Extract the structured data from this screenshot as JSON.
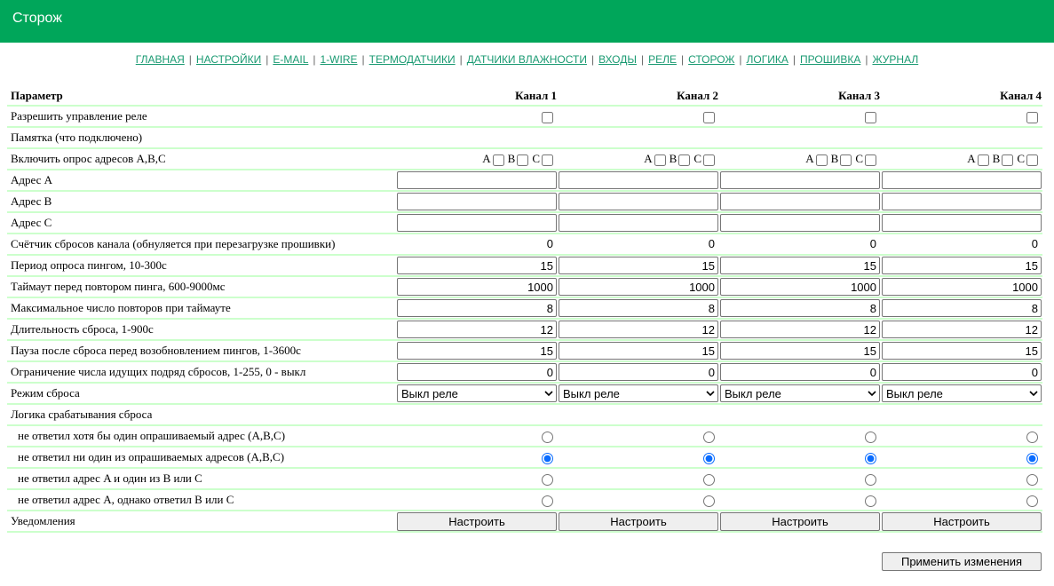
{
  "header": {
    "title": "Сторож"
  },
  "nav": [
    "ГЛАВНАЯ",
    "НАСТРОЙКИ",
    "E-MAIL",
    "1-WIRE",
    "ТЕРМОДАТЧИКИ",
    "ДАТЧИКИ ВЛАЖНОСТИ",
    "ВХОДЫ",
    "РЕЛЕ",
    "СТОРОЖ",
    "ЛОГИКА",
    "ПРОШИВКА",
    "ЖУРНАЛ"
  ],
  "table": {
    "param_header": "Параметр",
    "channels": [
      "Канал 1",
      "Канал 2",
      "Канал 3",
      "Канал 4"
    ],
    "rows": [
      {
        "label": "Разрешить управление реле",
        "type": "checkbox",
        "values": [
          false,
          false,
          false,
          false
        ]
      },
      {
        "label": "Памятка (что подключено)",
        "type": "none"
      },
      {
        "label": "Включить опрос адресов A,B,C",
        "type": "abc",
        "abc_labels": [
          "A",
          "B",
          "C"
        ],
        "values": [
          [
            false,
            false,
            false
          ],
          [
            false,
            false,
            false
          ],
          [
            false,
            false,
            false
          ],
          [
            false,
            false,
            false
          ]
        ]
      },
      {
        "label": "Адрес A",
        "type": "text",
        "values": [
          "",
          "",
          "",
          ""
        ]
      },
      {
        "label": "Адрес B",
        "type": "text",
        "values": [
          "",
          "",
          "",
          ""
        ]
      },
      {
        "label": "Адрес C",
        "type": "text",
        "values": [
          "",
          "",
          "",
          ""
        ]
      },
      {
        "label": "Счётчик сбросов канала (обнуляется при перезагрузке прошивки)",
        "type": "value",
        "values": [
          "0",
          "0",
          "0",
          "0"
        ]
      },
      {
        "label": "Период опроса пингом, 10-300с",
        "type": "text",
        "values": [
          "15",
          "15",
          "15",
          "15"
        ]
      },
      {
        "label": "Таймаут перед повтором пинга, 600-9000мс",
        "type": "text",
        "values": [
          "1000",
          "1000",
          "1000",
          "1000"
        ]
      },
      {
        "label": "Максимальное число повторов при таймауте",
        "type": "text",
        "values": [
          "8",
          "8",
          "8",
          "8"
        ]
      },
      {
        "label": "Длительность сброса, 1-900с",
        "type": "text",
        "values": [
          "12",
          "12",
          "12",
          "12"
        ]
      },
      {
        "label": "Пауза после сброса перед возобновлением пингов, 1-3600с",
        "type": "text",
        "values": [
          "15",
          "15",
          "15",
          "15"
        ]
      },
      {
        "label": "Ограничение числа идущих подряд сбросов, 1-255, 0 - выкл",
        "type": "text",
        "values": [
          "0",
          "0",
          "0",
          "0"
        ]
      },
      {
        "label": "Режим сброса",
        "type": "select",
        "values": [
          "Выкл реле",
          "Выкл реле",
          "Выкл реле",
          "Выкл реле"
        ]
      },
      {
        "label": "Логика срабатывания сброса",
        "type": "none"
      },
      {
        "label": "не ответил хотя бы один опрашиваемый адрес (A,B,C)",
        "type": "radio",
        "indent": true,
        "values": [
          false,
          false,
          false,
          false
        ]
      },
      {
        "label": "не ответил ни один из опрашиваемых адресов (A,B,C)",
        "type": "radio",
        "indent": true,
        "values": [
          true,
          true,
          true,
          true
        ]
      },
      {
        "label": "не ответил адрес A и один из B или C",
        "type": "radio",
        "indent": true,
        "values": [
          false,
          false,
          false,
          false
        ]
      },
      {
        "label": "не ответил адрес A, однако ответил B или C",
        "type": "radio",
        "indent": true,
        "values": [
          false,
          false,
          false,
          false
        ]
      },
      {
        "label": "Уведомления",
        "type": "button",
        "values": [
          "Настроить",
          "Настроить",
          "Настроить",
          "Настроить"
        ]
      }
    ]
  },
  "apply_label": "Применить изменения"
}
